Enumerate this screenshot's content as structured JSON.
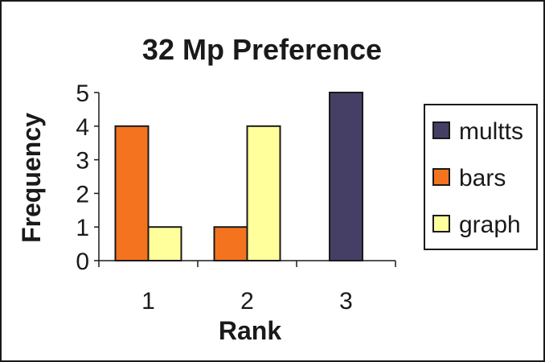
{
  "chart_data": {
    "type": "bar",
    "title": "32 Mp Preference",
    "xlabel": "Rank",
    "ylabel": "Frequency",
    "categories": [
      "1",
      "2",
      "3"
    ],
    "ylim": [
      0,
      5
    ],
    "yticks": [
      "0",
      "1",
      "2",
      "3",
      "4",
      "5"
    ],
    "grid": false,
    "legend_position": "right",
    "series": [
      {
        "name": "multts",
        "color": "#453f66",
        "values": [
          0,
          0,
          5
        ]
      },
      {
        "name": "bars",
        "color": "#f4731f",
        "values": [
          4,
          1,
          0
        ]
      },
      {
        "name": "graph",
        "color": "#ffff9c",
        "values": [
          1,
          4,
          0
        ]
      }
    ]
  }
}
